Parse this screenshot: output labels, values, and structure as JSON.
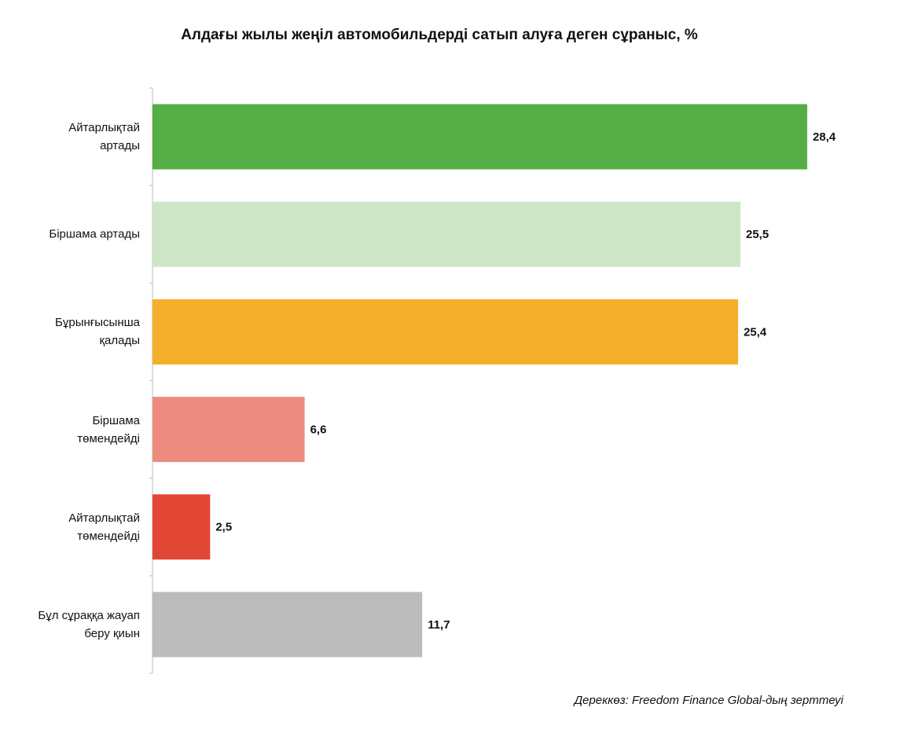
{
  "chart_data": {
    "type": "hbar",
    "title": "Алдағы жылы жеңіл автомобильдерді сатып алуға деген сұраныс, %",
    "categories": [
      "Айтарлықтай артады",
      "Біршама артады",
      "Бұрынғысынша қалады",
      "Біршама төмендейді",
      "Айтарлықтай төмендейді",
      "Бұл сұраққа жауап беру қиын"
    ],
    "values": [
      28.4,
      25.5,
      25.4,
      6.6,
      2.5,
      11.7
    ],
    "value_labels": [
      "28,4",
      "25,5",
      "25,4",
      "6,6",
      "2,5",
      "11,7"
    ],
    "colors": [
      "#55ae45",
      "#cce6c7",
      "#f4af2b",
      "#ee8b80",
      "#e24634",
      "#bcbcbc"
    ],
    "xlim": [
      0,
      30
    ],
    "source": "Дереккөз: Freedom Finance Global-дың зерттеуі"
  }
}
